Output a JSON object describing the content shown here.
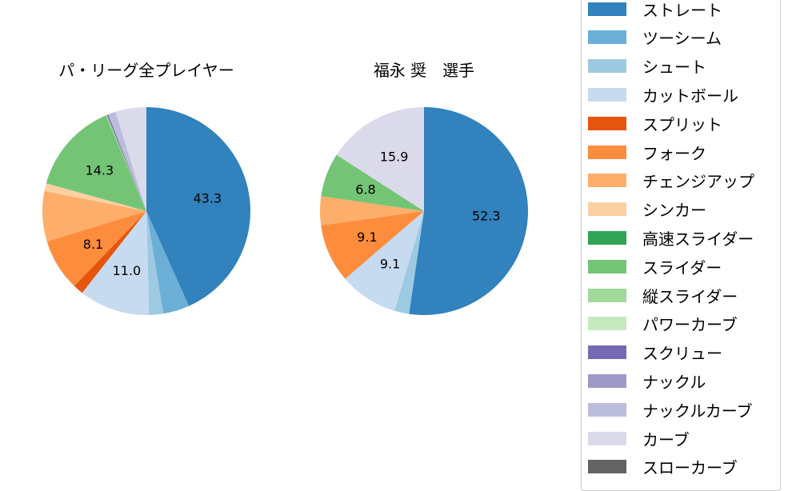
{
  "chart_data": [
    {
      "type": "pie",
      "title": "パ・リーグ全プレイヤー",
      "categories": [
        "ストレート",
        "ツーシーム",
        "シュート",
        "カットボール",
        "スプリット",
        "フォーク",
        "チェンジアップ",
        "シンカー",
        "スライダー",
        "縦スライダー",
        "スクリュー",
        "ナックルカーブ",
        "カーブ"
      ],
      "values": [
        43.3,
        4.1,
        2.2,
        11.0,
        1.6,
        8.1,
        7.8,
        1.2,
        14.3,
        0.2,
        0.2,
        1.2,
        4.8
      ],
      "labels_shown": [
        "43.3",
        "11.0",
        "8.1",
        "14.3"
      ],
      "start_angle": "top, clockwise"
    },
    {
      "type": "pie",
      "title": "福永 奨　選手",
      "categories": [
        "ストレート",
        "シュート",
        "カットボール",
        "フォーク",
        "チェンジアップ",
        "スライダー",
        "カーブ"
      ],
      "values": [
        52.3,
        2.3,
        9.1,
        9.1,
        4.5,
        6.8,
        15.9
      ],
      "labels_shown": [
        "52.3",
        "9.1",
        "9.1",
        "6.8",
        "15.9"
      ],
      "start_angle": "top, clockwise"
    }
  ],
  "titles": {
    "left": "パ・リーグ全プレイヤー",
    "right": "福永 奨　選手"
  },
  "colors": {
    "ストレート": "#3182bd",
    "ツーシーム": "#6baed6",
    "シュート": "#9ecae1",
    "カットボール": "#c6dbef",
    "スプリット": "#e6550d",
    "フォーク": "#fd8d3c",
    "チェンジアップ": "#fdae6b",
    "シンカー": "#fdd0a2",
    "高速スライダー": "#31a354",
    "スライダー": "#74c476",
    "縦スライダー": "#a1d99b",
    "パワーカーブ": "#c7e9c0",
    "スクリュー": "#756bb1",
    "ナックル": "#9e9ac8",
    "ナックルカーブ": "#bcbddc",
    "カーブ": "#dadaeb",
    "スローカーブ": "#636363"
  },
  "legend": [
    {
      "label": "ストレート",
      "color": "#3182bd"
    },
    {
      "label": "ツーシーム",
      "color": "#6baed6"
    },
    {
      "label": "シュート",
      "color": "#9ecae1"
    },
    {
      "label": "カットボール",
      "color": "#c6dbef"
    },
    {
      "label": "スプリット",
      "color": "#e6550d"
    },
    {
      "label": "フォーク",
      "color": "#fd8d3c"
    },
    {
      "label": "チェンジアップ",
      "color": "#fdae6b"
    },
    {
      "label": "シンカー",
      "color": "#fdd0a2"
    },
    {
      "label": "高速スライダー",
      "color": "#31a354"
    },
    {
      "label": "スライダー",
      "color": "#74c476"
    },
    {
      "label": "縦スライダー",
      "color": "#a1d99b"
    },
    {
      "label": "パワーカーブ",
      "color": "#c7e9c0"
    },
    {
      "label": "スクリュー",
      "color": "#756bb1"
    },
    {
      "label": "ナックル",
      "color": "#9e9ac8"
    },
    {
      "label": "ナックルカーブ",
      "color": "#bcbddc"
    },
    {
      "label": "カーブ",
      "color": "#dadaeb"
    },
    {
      "label": "スローカーブ",
      "color": "#636363"
    }
  ]
}
